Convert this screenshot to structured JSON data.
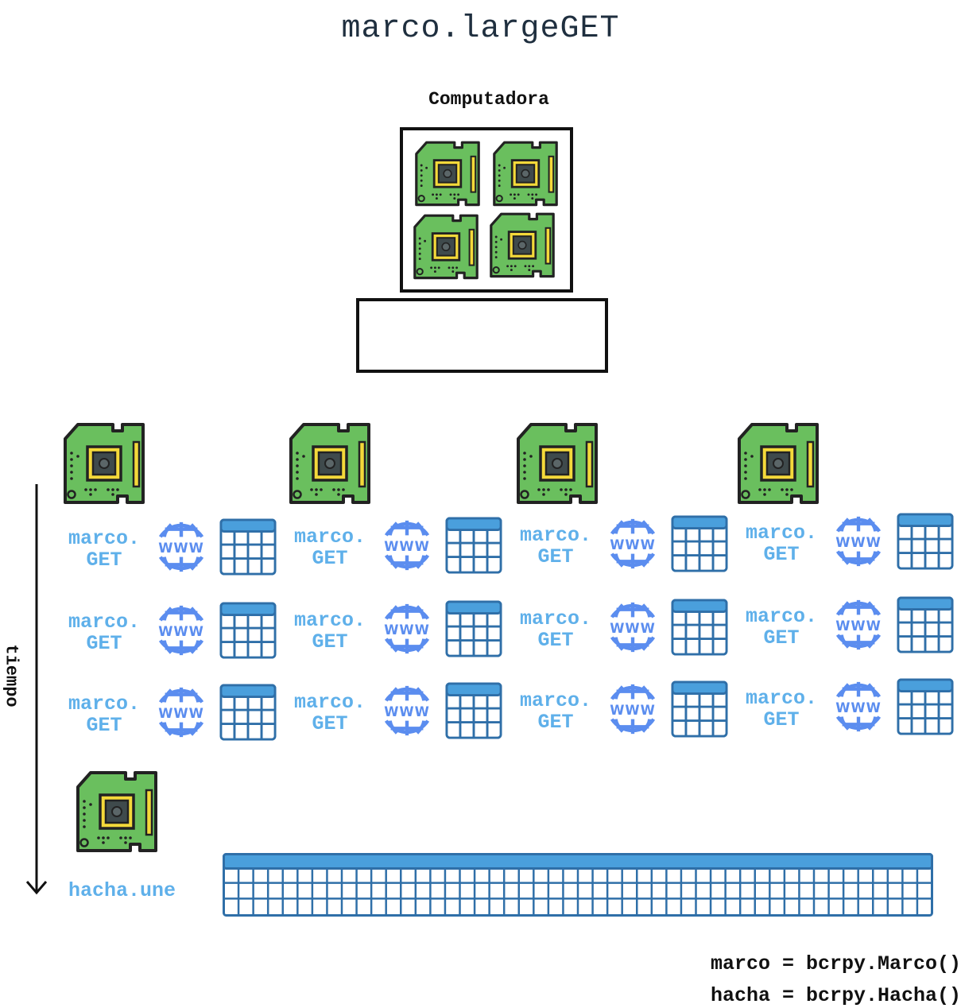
{
  "title": "marco.largeGET",
  "computer_label": "Computadora",
  "time_label": "tiempo",
  "request_label_line1": "marco.",
  "request_label_line2": "GET",
  "join_label": "hacha.une",
  "code_lines": [
    "marco = bcrpy.Marco()",
    "hacha = bcrpy.Hacha()"
  ],
  "icons": {
    "core": "cpu-chip-icon",
    "request": "www-globe-icon",
    "result": "data-table-icon"
  },
  "colors": {
    "chip_green": "#6abf5e",
    "chip_yellow": "#f4d93a",
    "label_blue": "#5fb0ea",
    "globe_blue": "#5b8def",
    "table_blue": "#2f6fa8",
    "table_header": "#4a9fdc"
  }
}
